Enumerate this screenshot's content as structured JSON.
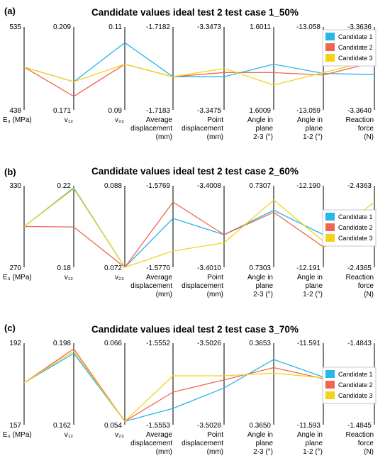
{
  "chart_data": [
    {
      "type": "line",
      "panel_label": "(a)",
      "title": "Candidate values ideal test 2 test case 1_50%",
      "axes": [
        {
          "label": [
            "E₃ (MPa)"
          ],
          "max_label": "535",
          "min_label": "438",
          "range": [
            438,
            535
          ]
        },
        {
          "label": [
            "v₁₂"
          ],
          "max_label": "0.209",
          "min_label": "0.171",
          "range": [
            0.171,
            0.209
          ]
        },
        {
          "label": [
            "v₂₃"
          ],
          "max_label": "0.11",
          "min_label": "0.09",
          "range": [
            0.09,
            0.11
          ]
        },
        {
          "label": [
            "Average",
            "displacement",
            "(mm)"
          ],
          "max_label": "-1.7182",
          "min_label": "-1.7183",
          "range": [
            -1.7183,
            -1.7182
          ]
        },
        {
          "label": [
            "Point",
            "displacement",
            "(mm)"
          ],
          "max_label": "-3.3473",
          "min_label": "-3.3475",
          "range": [
            -3.3475,
            -3.3473
          ]
        },
        {
          "label": [
            "Angle in",
            "plane",
            "2-3 (°)"
          ],
          "max_label": "1.6011",
          "min_label": "1.6009",
          "range": [
            1.6009,
            1.6011
          ]
        },
        {
          "label": [
            "Angle in",
            "plane",
            "1-2 (°)"
          ],
          "max_label": "-13.058",
          "min_label": "-13.059",
          "range": [
            -13.059,
            -13.058
          ]
        },
        {
          "label": [
            "Reaction",
            "force",
            "(N)"
          ],
          "max_label": "-3.3636",
          "min_label": "-3.3640",
          "range": [
            -3.364,
            -3.3636
          ]
        }
      ],
      "series": [
        {
          "name": "Candidate 1",
          "color": "#29b6e8",
          "values": [
            488,
            0.1839,
            0.1062,
            -1.71826,
            -3.34742,
            1.60101,
            -13.05856,
            -3.36383
          ]
        },
        {
          "name": "Candidate 2",
          "color": "#f0654e",
          "values": [
            488,
            0.1772,
            0.101,
            -1.71826,
            -3.34741,
            1.60099,
            -13.05858,
            -3.36377
          ]
        },
        {
          "name": "Candidate 3",
          "color": "#f5d21a",
          "values": [
            488,
            0.1839,
            0.101,
            -1.71826,
            -3.3474,
            1.60096,
            -13.05855,
            -3.36376
          ]
        }
      ],
      "legend_position": "right"
    },
    {
      "type": "line",
      "panel_label": "(b)",
      "title": "Candidate values ideal test 2 test case 2_60%",
      "axes": [
        {
          "label": [
            "E₃ (MPa)"
          ],
          "max_label": "330",
          "min_label": "270",
          "range": [
            270,
            330
          ]
        },
        {
          "label": [
            "v₁₂"
          ],
          "max_label": "0.22",
          "min_label": "0.18",
          "range": [
            0.18,
            0.22
          ]
        },
        {
          "label": [
            "v₂₃"
          ],
          "max_label": "0.088",
          "min_label": "0.072",
          "range": [
            0.072,
            0.088
          ]
        },
        {
          "label": [
            "Average",
            "displacement",
            "(mm)"
          ],
          "max_label": "-1.5769",
          "min_label": "-1.5770",
          "range": [
            -1.577,
            -1.5769
          ]
        },
        {
          "label": [
            "Point",
            "displacement",
            "(mm)"
          ],
          "max_label": "-3.4008",
          "min_label": "-3.4010",
          "range": [
            -3.401,
            -3.4008
          ]
        },
        {
          "label": [
            "Angle in",
            "plane",
            "2-3 (°)"
          ],
          "max_label": "0.7307",
          "min_label": "0.7303",
          "range": [
            0.7303,
            0.7307
          ]
        },
        {
          "label": [
            "Angle in",
            "plane",
            "1-2 (°)"
          ],
          "max_label": "-12.190",
          "min_label": "-12.191",
          "range": [
            -12.191,
            -12.19
          ]
        },
        {
          "label": [
            "Reaction",
            "force",
            "(N)"
          ],
          "max_label": "-2.4363",
          "min_label": "-2.4365",
          "range": [
            -2.4365,
            -2.4363
          ]
        }
      ],
      "series": [
        {
          "name": "Candidate 1",
          "color": "#29b6e8",
          "values": [
            300,
            0.219,
            0.072,
            -1.57694,
            -3.40092,
            0.73058,
            -12.1906,
            -2.43643
          ]
        },
        {
          "name": "Candidate 2",
          "color": "#f0654e",
          "values": [
            300,
            0.1998,
            0.072,
            -1.57692,
            -3.40092,
            0.73057,
            -12.19075,
            -2.4364
          ]
        },
        {
          "name": "Candidate 3",
          "color": "#f5d21a",
          "values": [
            300,
            0.2185,
            0.072,
            -1.57698,
            -3.40094,
            0.73063,
            -12.19068,
            -2.43634
          ]
        }
      ],
      "legend_position": "right"
    },
    {
      "type": "line",
      "panel_label": "(c)",
      "title": "Candidate values ideal test 2 test case 3_70%",
      "axes": [
        {
          "label": [
            "E₃ (MPa)"
          ],
          "max_label": "192",
          "min_label": "157",
          "range": [
            157,
            192
          ]
        },
        {
          "label": [
            "v₁₂"
          ],
          "max_label": "0.198",
          "min_label": "0.162",
          "range": [
            0.162,
            0.198
          ]
        },
        {
          "label": [
            "v₂₃"
          ],
          "max_label": "0.066",
          "min_label": "0.054",
          "range": [
            0.054,
            0.066
          ]
        },
        {
          "label": [
            "Average",
            "displacement",
            "(mm)"
          ],
          "max_label": "-1.5552",
          "min_label": "-1.5553",
          "range": [
            -1.5553,
            -1.5552
          ]
        },
        {
          "label": [
            "Point",
            "displacement",
            "(mm)"
          ],
          "max_label": "-3.5026",
          "min_label": "-3.5028",
          "range": [
            -3.5028,
            -3.5026
          ]
        },
        {
          "label": [
            "Angle in",
            "plane",
            "2-3 (°)"
          ],
          "max_label": "0.3653",
          "min_label": "0.3650",
          "range": [
            0.365,
            0.3653
          ]
        },
        {
          "label": [
            "Angle in",
            "plane",
            "1-2 (°)"
          ],
          "max_label": "-11.591",
          "min_label": "-11.593",
          "range": [
            -11.593,
            -11.591
          ]
        },
        {
          "label": [
            "Reaction",
            "force",
            "(N)"
          ],
          "max_label": "-1.4843",
          "min_label": "-1.4845",
          "range": [
            -1.4845,
            -1.4843
          ]
        }
      ],
      "series": [
        {
          "name": "Candidate 1",
          "color": "#29b6e8",
          "values": [
            175,
            0.1935,
            0.0545,
            -1.55528,
            -3.50271,
            0.36524,
            -11.59183,
            -1.48437
          ]
        },
        {
          "name": "Candidate 2",
          "color": "#f0654e",
          "values": [
            175,
            0.1955,
            0.0545,
            -1.55526,
            -3.50269,
            0.36521,
            -11.59187,
            -1.4844
          ]
        },
        {
          "name": "Candidate 3",
          "color": "#f5d21a",
          "values": [
            175,
            0.1945,
            0.0545,
            -1.55524,
            -3.50268,
            0.36519,
            -11.59185,
            -1.48442
          ]
        }
      ],
      "legend_position": "right"
    }
  ]
}
